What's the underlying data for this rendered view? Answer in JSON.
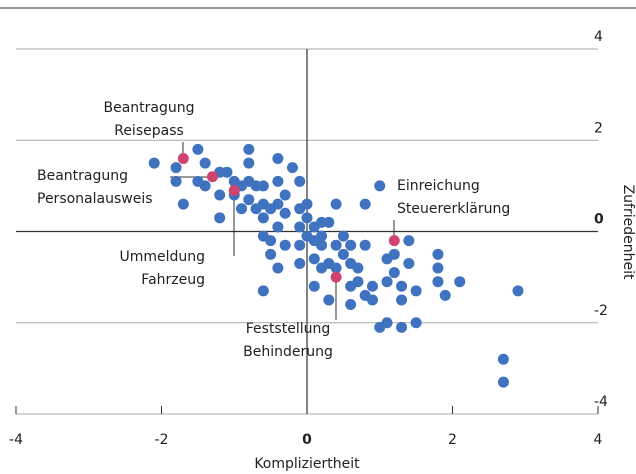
{
  "chart_data": {
    "type": "scatter",
    "xlabel": "Kompliziertheit",
    "ylabel": "Zufriedenheit",
    "xlim": [
      -4,
      4
    ],
    "ylim": [
      -4,
      4
    ],
    "xticks": [
      -4,
      -2,
      0,
      2,
      4
    ],
    "yticks": [
      -4,
      -2,
      0,
      2,
      4
    ],
    "grid": true,
    "series": [
      {
        "color": "#3f73c0",
        "x": [
          -2.1,
          -1.8,
          -1.8,
          -1.7,
          -1.5,
          -1.4,
          -1.5,
          -1.4,
          -1.2,
          -1.1,
          -1.2,
          -1.2,
          -1.0,
          -1.0,
          -0.9,
          -0.8,
          -0.8,
          -0.8,
          -0.9,
          -0.8,
          -0.7,
          -0.6,
          -0.7,
          -0.6,
          -0.6,
          -0.5,
          -0.6,
          -0.5,
          -0.4,
          -0.4,
          -0.4,
          -0.3,
          -0.4,
          -0.3,
          -0.3,
          -0.2,
          -0.1,
          -0.1,
          -0.1,
          -0.1,
          0,
          0,
          0,
          0.1,
          0.1,
          0.1,
          0.1,
          0.2,
          0.2,
          0.2,
          0.3,
          0.3,
          0.3,
          0.4,
          0.4,
          0.4,
          0.5,
          0.5,
          0.6,
          0.6,
          0.6,
          0.6,
          0.7,
          0.7,
          0.8,
          0.8,
          0.8,
          0.9,
          0.9,
          1.0,
          1.0,
          1.1,
          1.1,
          1.1,
          1.2,
          1.2,
          1.3,
          1.3,
          1.3,
          1.4,
          1.4,
          1.5,
          1.5,
          1.8,
          1.8,
          1.8,
          1.9,
          2.1,
          2.9,
          2.7,
          2.7,
          -0.6,
          -0.5,
          -0.4,
          -0.1,
          0.2
        ],
        "values": [
          1.5,
          1.4,
          1.1,
          0.6,
          1.8,
          1.5,
          1.1,
          1.0,
          1.3,
          1.3,
          0.8,
          0.3,
          1.1,
          0.8,
          1.0,
          1.8,
          1.5,
          1.1,
          0.5,
          0.7,
          1.0,
          1.0,
          0.5,
          0.6,
          0.3,
          0.5,
          -0.1,
          -0.2,
          0.1,
          1.6,
          1.1,
          0.8,
          0.6,
          0.4,
          -0.3,
          1.4,
          1.1,
          0.5,
          0.1,
          -0.3,
          0.6,
          0.3,
          -0.1,
          0.1,
          -0.2,
          -0.6,
          -1.2,
          0.2,
          -0.3,
          -0.8,
          0.2,
          -0.7,
          -1.5,
          0.6,
          -0.3,
          -0.8,
          -0.1,
          -0.5,
          -0.3,
          -0.7,
          -1.2,
          -1.6,
          -0.8,
          -1.1,
          0.6,
          -0.3,
          -1.4,
          -1.2,
          -1.5,
          1.0,
          -2.1,
          -2.0,
          -1.1,
          -0.6,
          -0.5,
          -0.9,
          -1.2,
          -1.5,
          -2.1,
          -0.2,
          -0.7,
          -2.0,
          -1.3,
          -0.5,
          -0.8,
          -1.1,
          -1.4,
          -1.1,
          -1.3,
          -2.8,
          -3.3,
          -1.3,
          -0.5,
          -0.8,
          -0.7,
          -0.1
        ]
      },
      {
        "color": "#d0436e",
        "x": [
          -1.7,
          -1.3,
          -1.0,
          1.2,
          0.4
        ],
        "values": [
          1.6,
          1.2,
          0.9,
          -0.2,
          -1.0
        ]
      }
    ],
    "annotations": [
      {
        "lines": [
          "Beantragung",
          "Reisepass"
        ]
      },
      {
        "lines": [
          "Beantragung",
          "Personalausweis"
        ]
      },
      {
        "lines": [
          "Ummeldung",
          "Fahrzeug"
        ]
      },
      {
        "lines": [
          "Einreichung",
          "Steuererklärung"
        ]
      },
      {
        "lines": [
          "Feststellung",
          "Behinderung"
        ]
      }
    ]
  }
}
